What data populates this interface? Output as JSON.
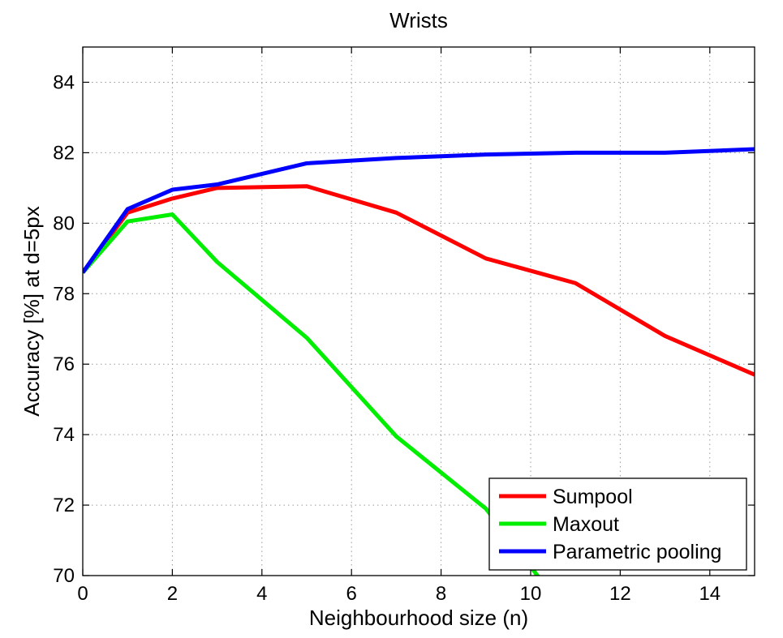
{
  "chart_data": {
    "type": "line",
    "title": "Wrists",
    "xlabel": "Neighbourhood size (n)",
    "ylabel": "Accuracy [%] at d=5px",
    "xlim": [
      0,
      15
    ],
    "ylim": [
      70,
      85
    ],
    "xticks": [
      0,
      2,
      4,
      6,
      8,
      10,
      12,
      14
    ],
    "yticks": [
      70,
      72,
      74,
      76,
      78,
      80,
      82,
      84
    ],
    "grid": true,
    "legend_position": "bottom-right",
    "series": [
      {
        "name": "Sumpool",
        "color": "#ff0000",
        "x": [
          0,
          1,
          2,
          3,
          5,
          7,
          9,
          11,
          13,
          15
        ],
        "y": [
          78.6,
          80.3,
          80.7,
          81.0,
          81.05,
          80.3,
          79.0,
          78.3,
          76.8,
          75.7
        ]
      },
      {
        "name": "Maxout",
        "color": "#00ee00",
        "x": [
          0,
          1,
          2,
          3,
          5,
          7,
          9,
          11
        ],
        "y": [
          78.6,
          80.05,
          80.25,
          78.9,
          76.75,
          73.95,
          71.9,
          68.6
        ]
      },
      {
        "name": "Parametric pooling",
        "color": "#0000ff",
        "x": [
          0,
          1,
          2,
          3,
          5,
          7,
          9,
          11,
          13,
          15
        ],
        "y": [
          78.6,
          80.4,
          80.95,
          81.1,
          81.7,
          81.85,
          81.95,
          82.0,
          82.0,
          82.1
        ]
      }
    ]
  }
}
